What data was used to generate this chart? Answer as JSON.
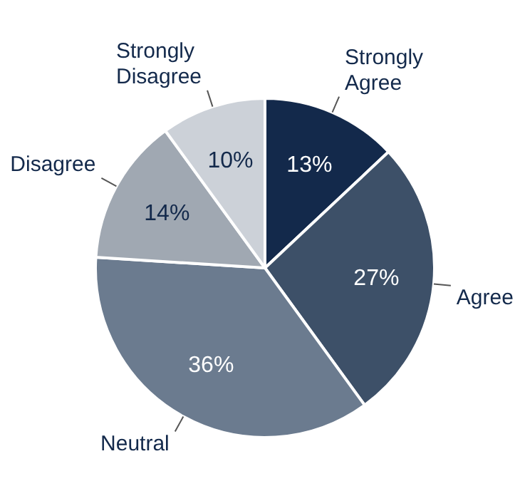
{
  "chart_data": {
    "type": "pie",
    "categories": [
      "Strongly Agree",
      "Agree",
      "Neutral",
      "Disagree",
      "Strongly Disagree"
    ],
    "values": [
      13,
      27,
      36,
      14,
      10
    ],
    "value_labels": [
      "13%",
      "27%",
      "36%",
      "14%",
      "10%"
    ],
    "colors": [
      "#13294b",
      "#3d5068",
      "#6b7b8f",
      "#a0a8b2",
      "#ccd1d8"
    ],
    "legend": false
  }
}
